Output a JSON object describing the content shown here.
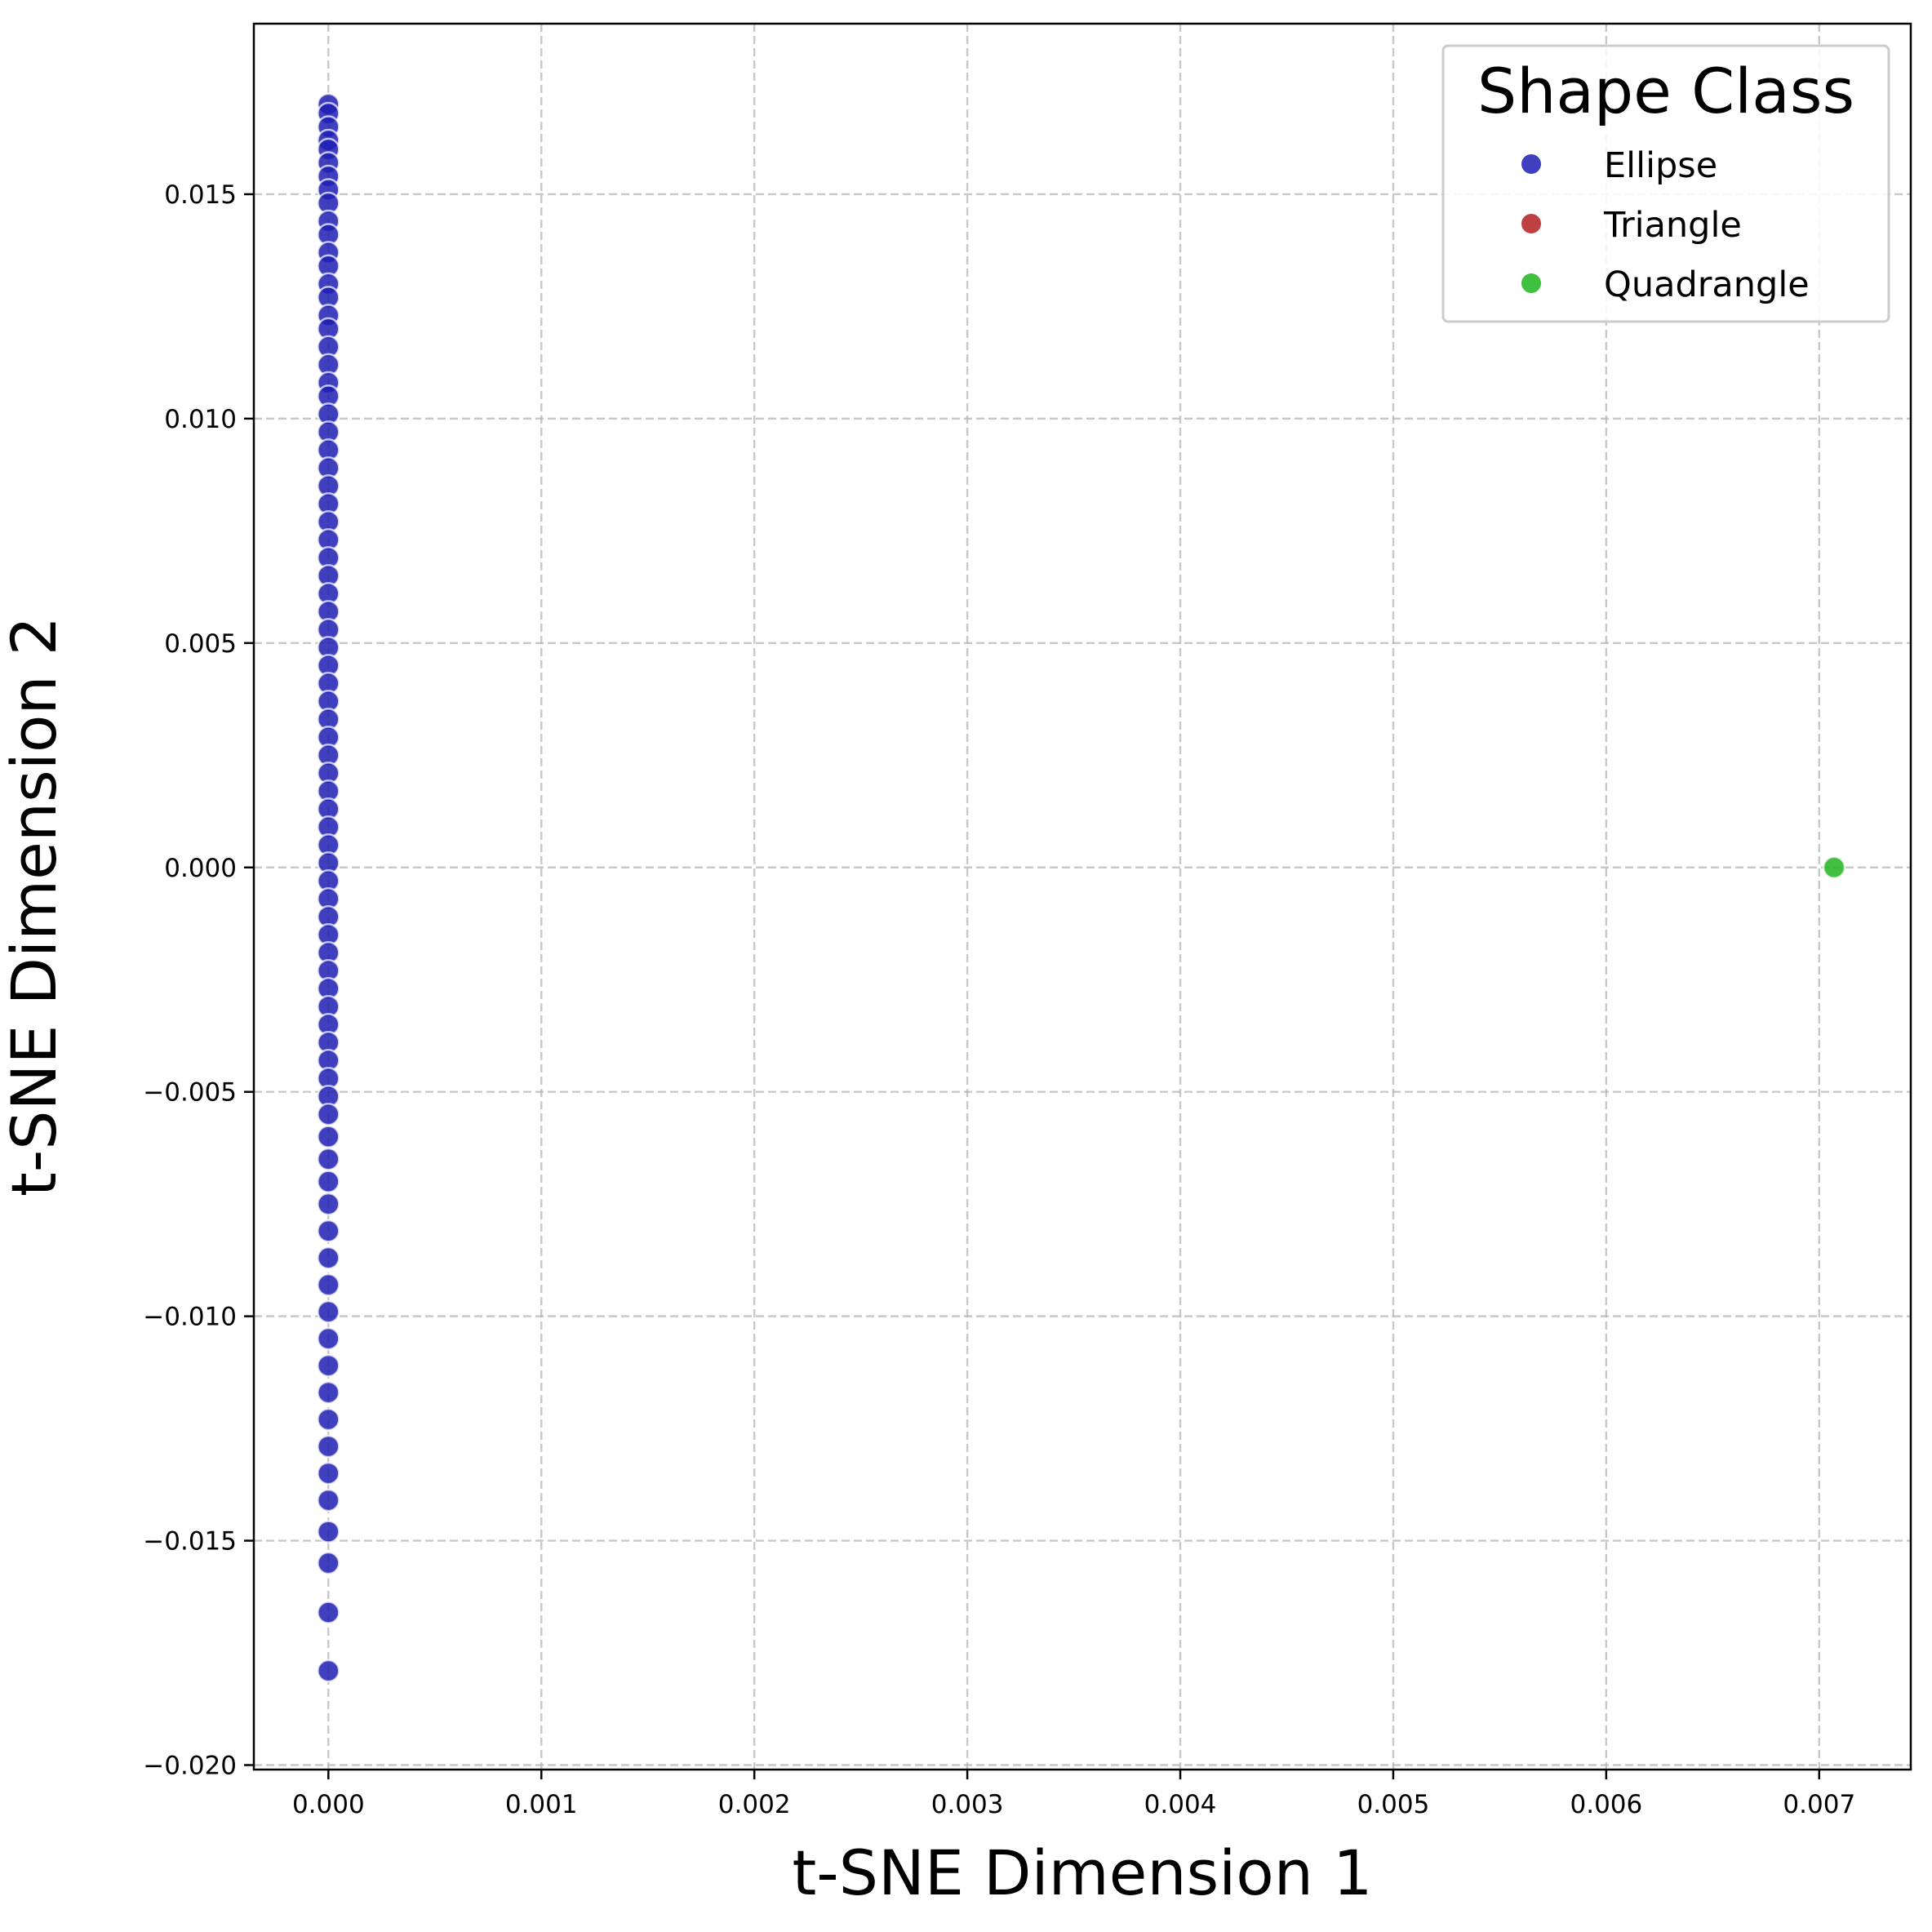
{
  "chart_data": {
    "type": "scatter",
    "title": "",
    "xlabel": "t-SNE Dimension 1",
    "ylabel": "t-SNE Dimension 2",
    "xlim": [
      -0.00035,
      0.00743
    ],
    "ylim": [
      -0.0201,
      0.0188
    ],
    "x_ticks": [
      0.0,
      0.001,
      0.002,
      0.003,
      0.004,
      0.005,
      0.006,
      0.007
    ],
    "x_tick_labels": [
      "0.000",
      "0.001",
      "0.002",
      "0.003",
      "0.004",
      "0.005",
      "0.006",
      "0.007"
    ],
    "y_ticks": [
      -0.02,
      -0.015,
      -0.01,
      -0.005,
      0.0,
      0.005,
      0.01,
      0.015
    ],
    "y_tick_labels": [
      "−0.020",
      "−0.015",
      "−0.010",
      "−0.005",
      "0.000",
      "0.005",
      "0.010",
      "0.015"
    ],
    "grid": true,
    "grid_style": "dashed",
    "legend": {
      "title": "Shape Class",
      "position": "top-right"
    },
    "series": [
      {
        "name": "Ellipse",
        "color": "#1f1fb4",
        "x": [
          0,
          0,
          0,
          0,
          0,
          0,
          0,
          0,
          0,
          0,
          0,
          0,
          0,
          0,
          0,
          0,
          0,
          0,
          0,
          0,
          0,
          0,
          0,
          0,
          0,
          0,
          0,
          0,
          0,
          0,
          0,
          0,
          0,
          0,
          0,
          0,
          0,
          0,
          0,
          0,
          0,
          0,
          0,
          0,
          0,
          0,
          0,
          0,
          0,
          0,
          0,
          0,
          0,
          0,
          0,
          0,
          0,
          0,
          0,
          0,
          0,
          0,
          0,
          0,
          0,
          0,
          0,
          0,
          0,
          0,
          0,
          0,
          0,
          0,
          0,
          0,
          0,
          0,
          0,
          0
        ],
        "y": [
          0.017,
          0.0168,
          0.0165,
          0.0162,
          0.016,
          0.0157,
          0.0154,
          0.0151,
          0.0148,
          0.0144,
          0.0141,
          0.0137,
          0.0134,
          0.013,
          0.0127,
          0.0123,
          0.012,
          0.0116,
          0.0112,
          0.0108,
          0.0105,
          0.0101,
          0.0097,
          0.0093,
          0.0089,
          0.0085,
          0.0081,
          0.0077,
          0.0073,
          0.0069,
          0.0065,
          0.0061,
          0.0057,
          0.0053,
          0.0049,
          0.0045,
          0.0041,
          0.0037,
          0.0033,
          0.0029,
          0.0025,
          0.0021,
          0.0017,
          0.0013,
          0.0009,
          0.0005,
          0.0001,
          -0.0003,
          -0.0007,
          -0.0011,
          -0.0015,
          -0.0019,
          -0.0023,
          -0.0027,
          -0.0031,
          -0.0035,
          -0.0039,
          -0.0043,
          -0.0047,
          -0.0051,
          -0.0055,
          -0.006,
          -0.0065,
          -0.007,
          -0.0075,
          -0.0081,
          -0.0087,
          -0.0093,
          -0.0099,
          -0.0105,
          -0.0111,
          -0.0117,
          -0.0123,
          -0.0129,
          -0.0135,
          -0.0141,
          -0.0148,
          -0.0155,
          -0.0166,
          -0.0179
        ]
      },
      {
        "name": "Triangle",
        "color": "#b41f1f",
        "x": [],
        "y": []
      },
      {
        "name": "Quadrangle",
        "color": "#1fb41f",
        "x": [
          0.00707
        ],
        "y": [
          0.0
        ]
      }
    ]
  }
}
